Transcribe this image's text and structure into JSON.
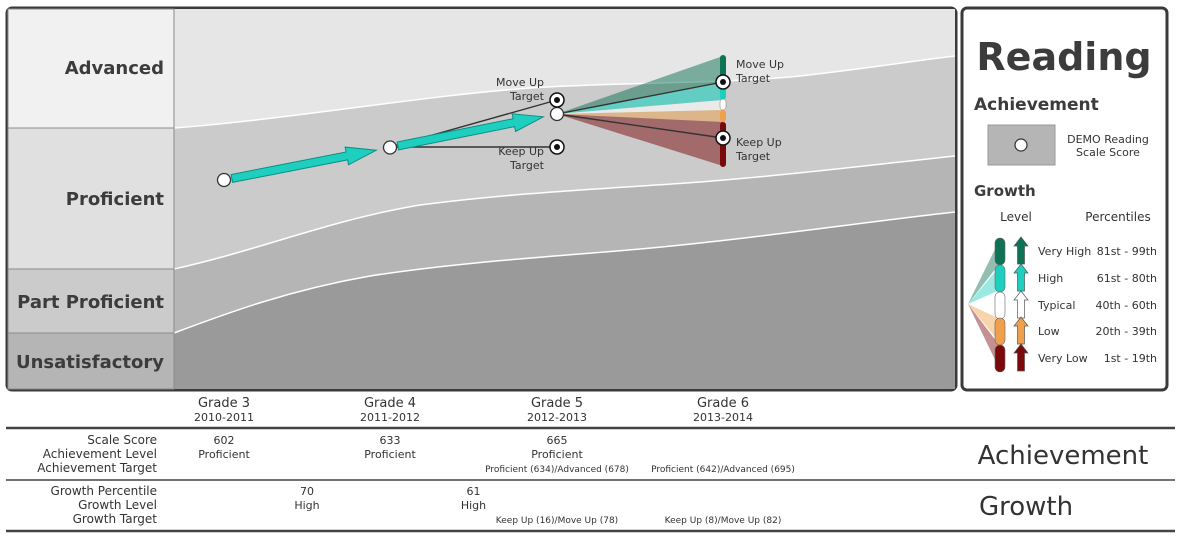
{
  "chart_data": {
    "type": "line",
    "subject": "Reading",
    "achievement_heading": "Achievement",
    "growth_heading": "Growth",
    "legend": {
      "achievement_item": "DEMO Reading Scale Score",
      "level_header": "Level",
      "percentiles_header": "Percentiles",
      "growth_levels": [
        {
          "name": "Very High",
          "range": "81st  - 99th",
          "color": "#0e7254"
        },
        {
          "name": "High",
          "range": "61st - 80th",
          "color": "#1ecfbf"
        },
        {
          "name": "Typical",
          "range": "40th - 60th",
          "color": "#ffffff"
        },
        {
          "name": "Low",
          "range": "20th - 39th",
          "color": "#f0a04a"
        },
        {
          "name": "Very Low",
          "range": "1st - 19th",
          "color": "#7a0a0a"
        }
      ]
    },
    "achievement_levels": [
      "Advanced",
      "Proficient",
      "Part Proficient",
      "Unsatisfactory"
    ],
    "x": [
      {
        "grade": "Grade 3",
        "year": "2010-2011"
      },
      {
        "grade": "Grade 4",
        "year": "2011-2012"
      },
      {
        "grade": "Grade 5",
        "year": "2012-2013"
      },
      {
        "grade": "Grade 6",
        "year": "2013-2014"
      }
    ],
    "series": [
      {
        "values": [
          602,
          633,
          665,
          null
        ]
      }
    ],
    "annotations": {
      "move_up_target": "Move Up Target",
      "keep_up_target": "Keep Up Target"
    },
    "table": {
      "achievement_label": "Achievement",
      "growth_label": "Growth",
      "row_labels": {
        "scale_score": "Scale Score",
        "achievement_level": "Achievement Level",
        "achievement_target": "Achievement Target",
        "growth_percentile": "Growth Percentile",
        "growth_level": "Growth Level",
        "growth_target": "Growth Target"
      },
      "scale_scores": [
        "602",
        "633",
        "665",
        ""
      ],
      "achievement_levels": [
        "Proficient",
        "Proficient",
        "Proficient",
        ""
      ],
      "achievement_targets": [
        "",
        "",
        "Proficient (634)/Advanced (678)",
        "Proficient (642)/Advanced (695)"
      ],
      "growth_percentiles": [
        "70",
        "61"
      ],
      "growth_levels": [
        "High",
        "High"
      ],
      "growth_targets": [
        "Keep Up (16)/Move Up (78)",
        "Keep Up (8)/Move Up (82)"
      ]
    }
  }
}
